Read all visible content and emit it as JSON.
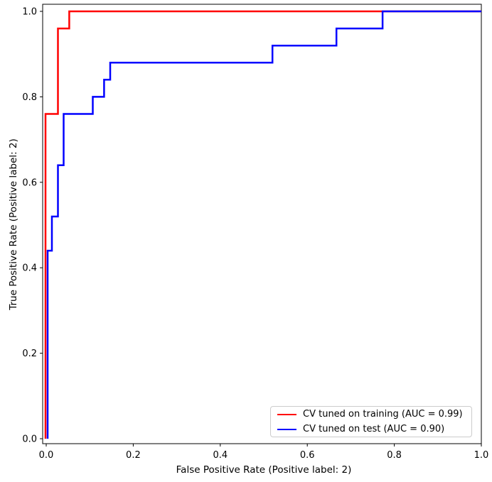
{
  "chart_data": {
    "type": "line",
    "subtype": "roc-curve-step",
    "title": "",
    "xlabel": "False Positive Rate (Positive label: 2)",
    "ylabel": "True Positive Rate (Positive label: 2)",
    "xlim": [
      0.0,
      1.0
    ],
    "ylim": [
      0.0,
      1.0
    ],
    "grid": false,
    "xticks": [
      0.0,
      0.2,
      0.4,
      0.6,
      0.8,
      1.0
    ],
    "yticks": [
      0.0,
      0.2,
      0.4,
      0.6,
      0.8,
      1.0
    ],
    "xtick_labels": [
      "0.0",
      "0.2",
      "0.4",
      "0.6",
      "0.8",
      "1.0"
    ],
    "ytick_labels": [
      "0.0",
      "0.2",
      "0.4",
      "0.6",
      "0.8",
      "1.0"
    ],
    "legend": {
      "position": "lower right",
      "border_color": "#cccccc",
      "background_color": "#ffffff"
    },
    "axis_color": "#000000",
    "series": [
      {
        "label": "CV tuned on training (AUC = 0.99)",
        "color": "#ff0000",
        "auc": 0.99,
        "x": [
          0.0,
          0.0,
          0.027,
          0.027,
          0.053,
          0.053,
          1.0
        ],
        "y": [
          0.0,
          0.76,
          0.76,
          0.96,
          0.96,
          1.0,
          1.0
        ]
      },
      {
        "label": "CV tuned on test (AUC = 0.90)",
        "color": "#0000ff",
        "auc": 0.9,
        "x": [
          0.0,
          0.0,
          0.013,
          0.013,
          0.027,
          0.027,
          0.04,
          0.04,
          0.107,
          0.107,
          0.133,
          0.133,
          0.147,
          0.147,
          0.52,
          0.52,
          0.667,
          0.667,
          0.773,
          0.773,
          1.0
        ],
        "y": [
          0.0,
          0.44,
          0.44,
          0.52,
          0.52,
          0.64,
          0.64,
          0.76,
          0.76,
          0.8,
          0.8,
          0.84,
          0.84,
          0.88,
          0.88,
          0.92,
          0.92,
          0.96,
          0.96,
          1.0,
          1.0
        ]
      }
    ]
  }
}
